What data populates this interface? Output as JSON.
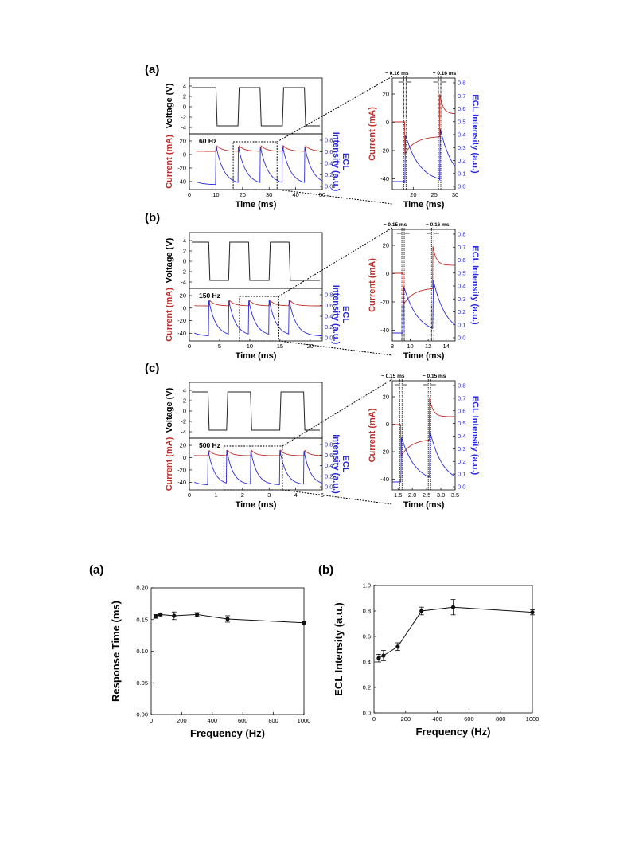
{
  "colors": {
    "voltage": "#222222",
    "current": "#c0302a",
    "ecl": "#2a2ad8",
    "axis": "#000000",
    "marker": "#111111"
  },
  "top_panels": [
    {
      "label": "(a)",
      "frequency_label": "60 Hz",
      "left": {
        "voltage_ylabel": "Voltage (V)",
        "current_ylabel": "Current (mA)",
        "ecl_ylabel_line1": "ECL",
        "ecl_ylabel_line2": "Intensity (a.u.)",
        "xlabel": "Time (ms)",
        "x_ticks": [
          "0",
          "10",
          "20",
          "30",
          "40",
          "50"
        ],
        "voltage_ticks": [
          "4",
          "2",
          "0",
          "-2",
          "-4"
        ],
        "current_ticks": [
          "20",
          "0",
          "-20",
          "-40"
        ],
        "ecl_ticks": [
          "0.8",
          "0.6",
          "0.4",
          "0.2",
          "0.0"
        ]
      },
      "right": {
        "current_ylabel": "Current (mA)",
        "ecl_ylabel": "ECL Intensity (a.u.)",
        "xlabel": "Time (ms)",
        "x_ticks": [
          "20",
          "25",
          "30"
        ],
        "current_ticks": [
          "20",
          "0",
          "-20",
          "-40"
        ],
        "ecl_ticks": [
          "0.8",
          "0.7",
          "0.6",
          "0.5",
          "0.4",
          "0.3",
          "0.2",
          "0.1",
          "0.0"
        ],
        "annotations": [
          "~ 0.16 ms",
          "~ 0.16 ms"
        ]
      }
    },
    {
      "label": "(b)",
      "frequency_label": "150 Hz",
      "left": {
        "voltage_ylabel": "Voltage (V)",
        "current_ylabel": "Current (mA)",
        "ecl_ylabel_line1": "ECL",
        "ecl_ylabel_line2": "Intensity (a.u.)",
        "xlabel": "Time (ms)",
        "x_ticks": [
          "0",
          "5",
          "10",
          "15",
          "20"
        ],
        "voltage_ticks": [
          "4",
          "2",
          "0",
          "-2",
          "-4"
        ],
        "current_ticks": [
          "20",
          "0",
          "-20",
          "-40"
        ],
        "ecl_ticks": [
          "0.8",
          "0.6",
          "0.4",
          "0.2",
          "0.0"
        ]
      },
      "right": {
        "current_ylabel": "Current (mA)",
        "ecl_ylabel": "ECL Intensity (a.u.)",
        "xlabel": "Time (ms)",
        "x_ticks": [
          "8",
          "10",
          "12",
          "14"
        ],
        "current_ticks": [
          "20",
          "0",
          "-20",
          "-40"
        ],
        "ecl_ticks": [
          "0.8",
          "0.7",
          "0.6",
          "0.5",
          "0.4",
          "0.3",
          "0.2",
          "0.1",
          "0.0"
        ],
        "annotations": [
          "~ 0.15 ms",
          "~ 0.16 ms"
        ]
      }
    },
    {
      "label": "(c)",
      "frequency_label": "500 Hz",
      "left": {
        "voltage_ylabel": "Voltage (V)",
        "current_ylabel": "Current (mA)",
        "ecl_ylabel_line1": "ECL",
        "ecl_ylabel_line2": "Intensity (a.u.)",
        "xlabel": "Time (ms)",
        "x_ticks": [
          "0",
          "1",
          "2",
          "3",
          "4",
          "5"
        ],
        "voltage_ticks": [
          "4",
          "2",
          "0",
          "-2",
          "-4"
        ],
        "current_ticks": [
          "20",
          "0",
          "-20",
          "-40"
        ],
        "ecl_ticks": [
          "0.8",
          "0.6",
          "0.4",
          "0.2",
          "0.0"
        ]
      },
      "right": {
        "current_ylabel": "Current (mA)",
        "ecl_ylabel": "ECL Intensity (a.u.)",
        "xlabel": "Time (ms)",
        "x_ticks": [
          "1.5",
          "2.0",
          "2.5",
          "3.0",
          "3.5"
        ],
        "current_ticks": [
          "20",
          "0",
          "-20",
          "-40"
        ],
        "ecl_ticks": [
          "0.8",
          "0.7",
          "0.6",
          "0.5",
          "0.4",
          "0.3",
          "0.2",
          "0.1",
          "0.0"
        ],
        "annotations": [
          "~ 0.15 ms",
          "~ 0.15 ms"
        ]
      }
    }
  ],
  "chart_data": [
    {
      "type": "line",
      "label": "(a)",
      "xlabel": "Frequency (Hz)",
      "ylabel": "Response Time (ms)",
      "xlim": [
        0,
        1000
      ],
      "ylim": [
        0,
        0.2
      ],
      "x_ticks": [
        "0",
        "200",
        "400",
        "600",
        "800",
        "1000"
      ],
      "y_ticks": [
        "0.00",
        "0.05",
        "0.10",
        "0.15",
        "0.20"
      ],
      "series": [
        {
          "x": [
            30,
            60,
            150,
            300,
            500,
            1000
          ],
          "y": [
            0.155,
            0.158,
            0.156,
            0.158,
            0.151,
            0.145
          ],
          "err": [
            0.003,
            0.002,
            0.006,
            0.003,
            0.005,
            0.002
          ]
        }
      ]
    },
    {
      "type": "line",
      "label": "(b)",
      "xlabel": "Frequency (Hz)",
      "ylabel": "ECL Intensity (a.u.)",
      "xlim": [
        0,
        1000
      ],
      "ylim": [
        0,
        1.0
      ],
      "x_ticks": [
        "0",
        "200",
        "400",
        "600",
        "800",
        "1000"
      ],
      "y_ticks": [
        "0.0",
        "0.2",
        "0.4",
        "0.6",
        "0.8",
        "1.0"
      ],
      "series": [
        {
          "x": [
            30,
            60,
            150,
            300,
            500,
            1000
          ],
          "y": [
            0.43,
            0.45,
            0.52,
            0.8,
            0.83,
            0.79
          ],
          "err": [
            0.03,
            0.04,
            0.03,
            0.03,
            0.06,
            0.02
          ]
        }
      ]
    }
  ]
}
